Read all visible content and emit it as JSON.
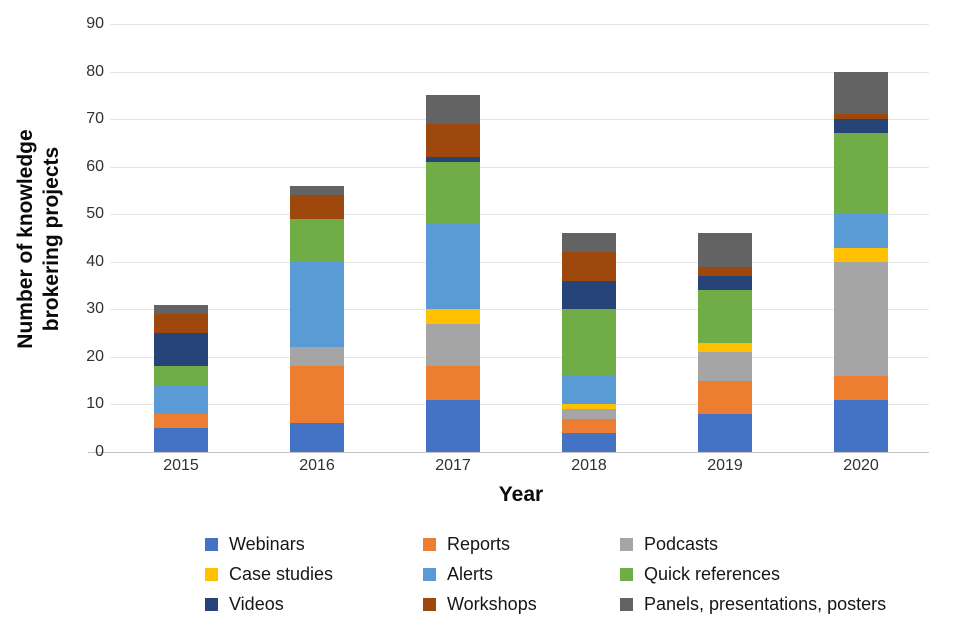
{
  "chart_data": {
    "type": "bar",
    "stacked": true,
    "categories": [
      "2015",
      "2016",
      "2017",
      "2018",
      "2019",
      "2020"
    ],
    "series": [
      {
        "name": "Webinars",
        "color": "#4472C4",
        "values": [
          5,
          6,
          11,
          4,
          8,
          11
        ]
      },
      {
        "name": "Reports",
        "color": "#ED7D31",
        "values": [
          3,
          12,
          7,
          3,
          7,
          5
        ]
      },
      {
        "name": "Podcasts",
        "color": "#A5A5A5",
        "values": [
          0,
          4,
          9,
          2,
          6,
          24
        ]
      },
      {
        "name": "Case studies",
        "color": "#FFC000",
        "values": [
          0,
          0,
          3,
          1,
          2,
          3
        ]
      },
      {
        "name": "Alerts",
        "color": "#5B9BD5",
        "values": [
          6,
          18,
          18,
          6,
          0,
          7
        ]
      },
      {
        "name": "Quick references",
        "color": "#70AD47",
        "values": [
          4,
          9,
          13,
          14,
          11,
          17
        ]
      },
      {
        "name": "Videos",
        "color": "#264478",
        "values": [
          7,
          0,
          1,
          6,
          3,
          3
        ]
      },
      {
        "name": "Workshops",
        "color": "#9E480E",
        "values": [
          4,
          5,
          7,
          6,
          2,
          1
        ]
      },
      {
        "name": "Panels, presentations, posters",
        "color": "#636363",
        "values": [
          2,
          2,
          6,
          4,
          7,
          9
        ]
      }
    ],
    "xlabel": "Year",
    "ylabel": "Number of knowledge brokering projects",
    "ylabel_lines": [
      "Number of knowledge",
      "brokering projects"
    ],
    "ylim": [
      0,
      90
    ],
    "yticks": [
      0,
      10,
      20,
      30,
      40,
      50,
      60,
      70,
      80,
      90
    ],
    "grid": true,
    "legend_position": "bottom",
    "legend_columns": [
      [
        "Webinars",
        "Case studies",
        "Videos"
      ],
      [
        "Reports",
        "Alerts",
        "Workshops"
      ],
      [
        "Podcasts",
        "Quick references",
        "Panels, presentations, posters"
      ]
    ],
    "colors": {
      "webinars": "#4472C4",
      "reports": "#ED7D31",
      "podcasts": "#A5A5A5",
      "case_studies": "#FFC000",
      "alerts": "#5B9BD5",
      "quick_references": "#70AD47",
      "videos": "#264478",
      "workshops": "#9E480E",
      "panels_presentations_posters": "#636363",
      "gridline": "#E4E4E4",
      "axis_text": "#313131"
    }
  }
}
